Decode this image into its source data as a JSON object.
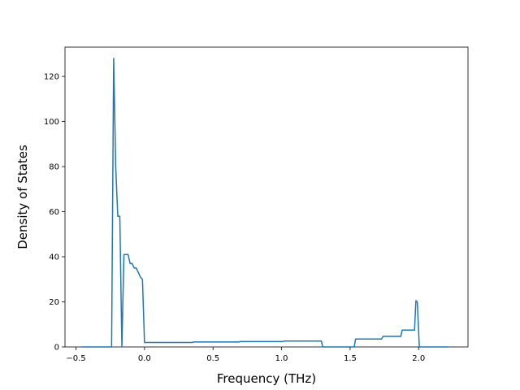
{
  "chart_data": {
    "type": "line",
    "xlabel": "Frequency (THz)",
    "ylabel": "Density of States",
    "xlim": [
      -0.58,
      2.36
    ],
    "ylim": [
      0,
      133
    ],
    "grid": false,
    "xticks": [
      -0.5,
      0.0,
      0.5,
      1.0,
      1.5,
      2.0
    ],
    "xtick_labels": [
      "−0.5",
      "0.0",
      "0.5",
      "1.0",
      "1.5",
      "2.0"
    ],
    "yticks": [
      0,
      20,
      40,
      60,
      80,
      100,
      120
    ],
    "ytick_labels": [
      "0",
      "20",
      "40",
      "60",
      "80",
      "100",
      "120"
    ],
    "series": [
      {
        "name": "",
        "color": "#1f77b4",
        "x": [
          -0.46,
          -0.24,
          -0.225,
          -0.21,
          -0.195,
          -0.18,
          -0.165,
          -0.15,
          -0.135,
          -0.12,
          -0.105,
          -0.09,
          -0.075,
          -0.06,
          -0.045,
          -0.03,
          -0.015,
          0.0,
          0.35,
          0.36,
          0.69,
          0.7,
          1.01,
          1.02,
          1.29,
          1.3,
          1.53,
          1.54,
          1.73,
          1.74,
          1.87,
          1.88,
          1.97,
          1.98,
          1.99,
          2.005,
          2.22
        ],
        "y": [
          0,
          0,
          128,
          80,
          58,
          58,
          0,
          41,
          41,
          41,
          37,
          37,
          35,
          35,
          33,
          31,
          30,
          2,
          2,
          2.2,
          2.2,
          2.4,
          2.4,
          2.6,
          2.6,
          0,
          0,
          3.5,
          3.5,
          4.7,
          4.7,
          7.5,
          7.5,
          20.5,
          20,
          0,
          0
        ]
      }
    ]
  }
}
